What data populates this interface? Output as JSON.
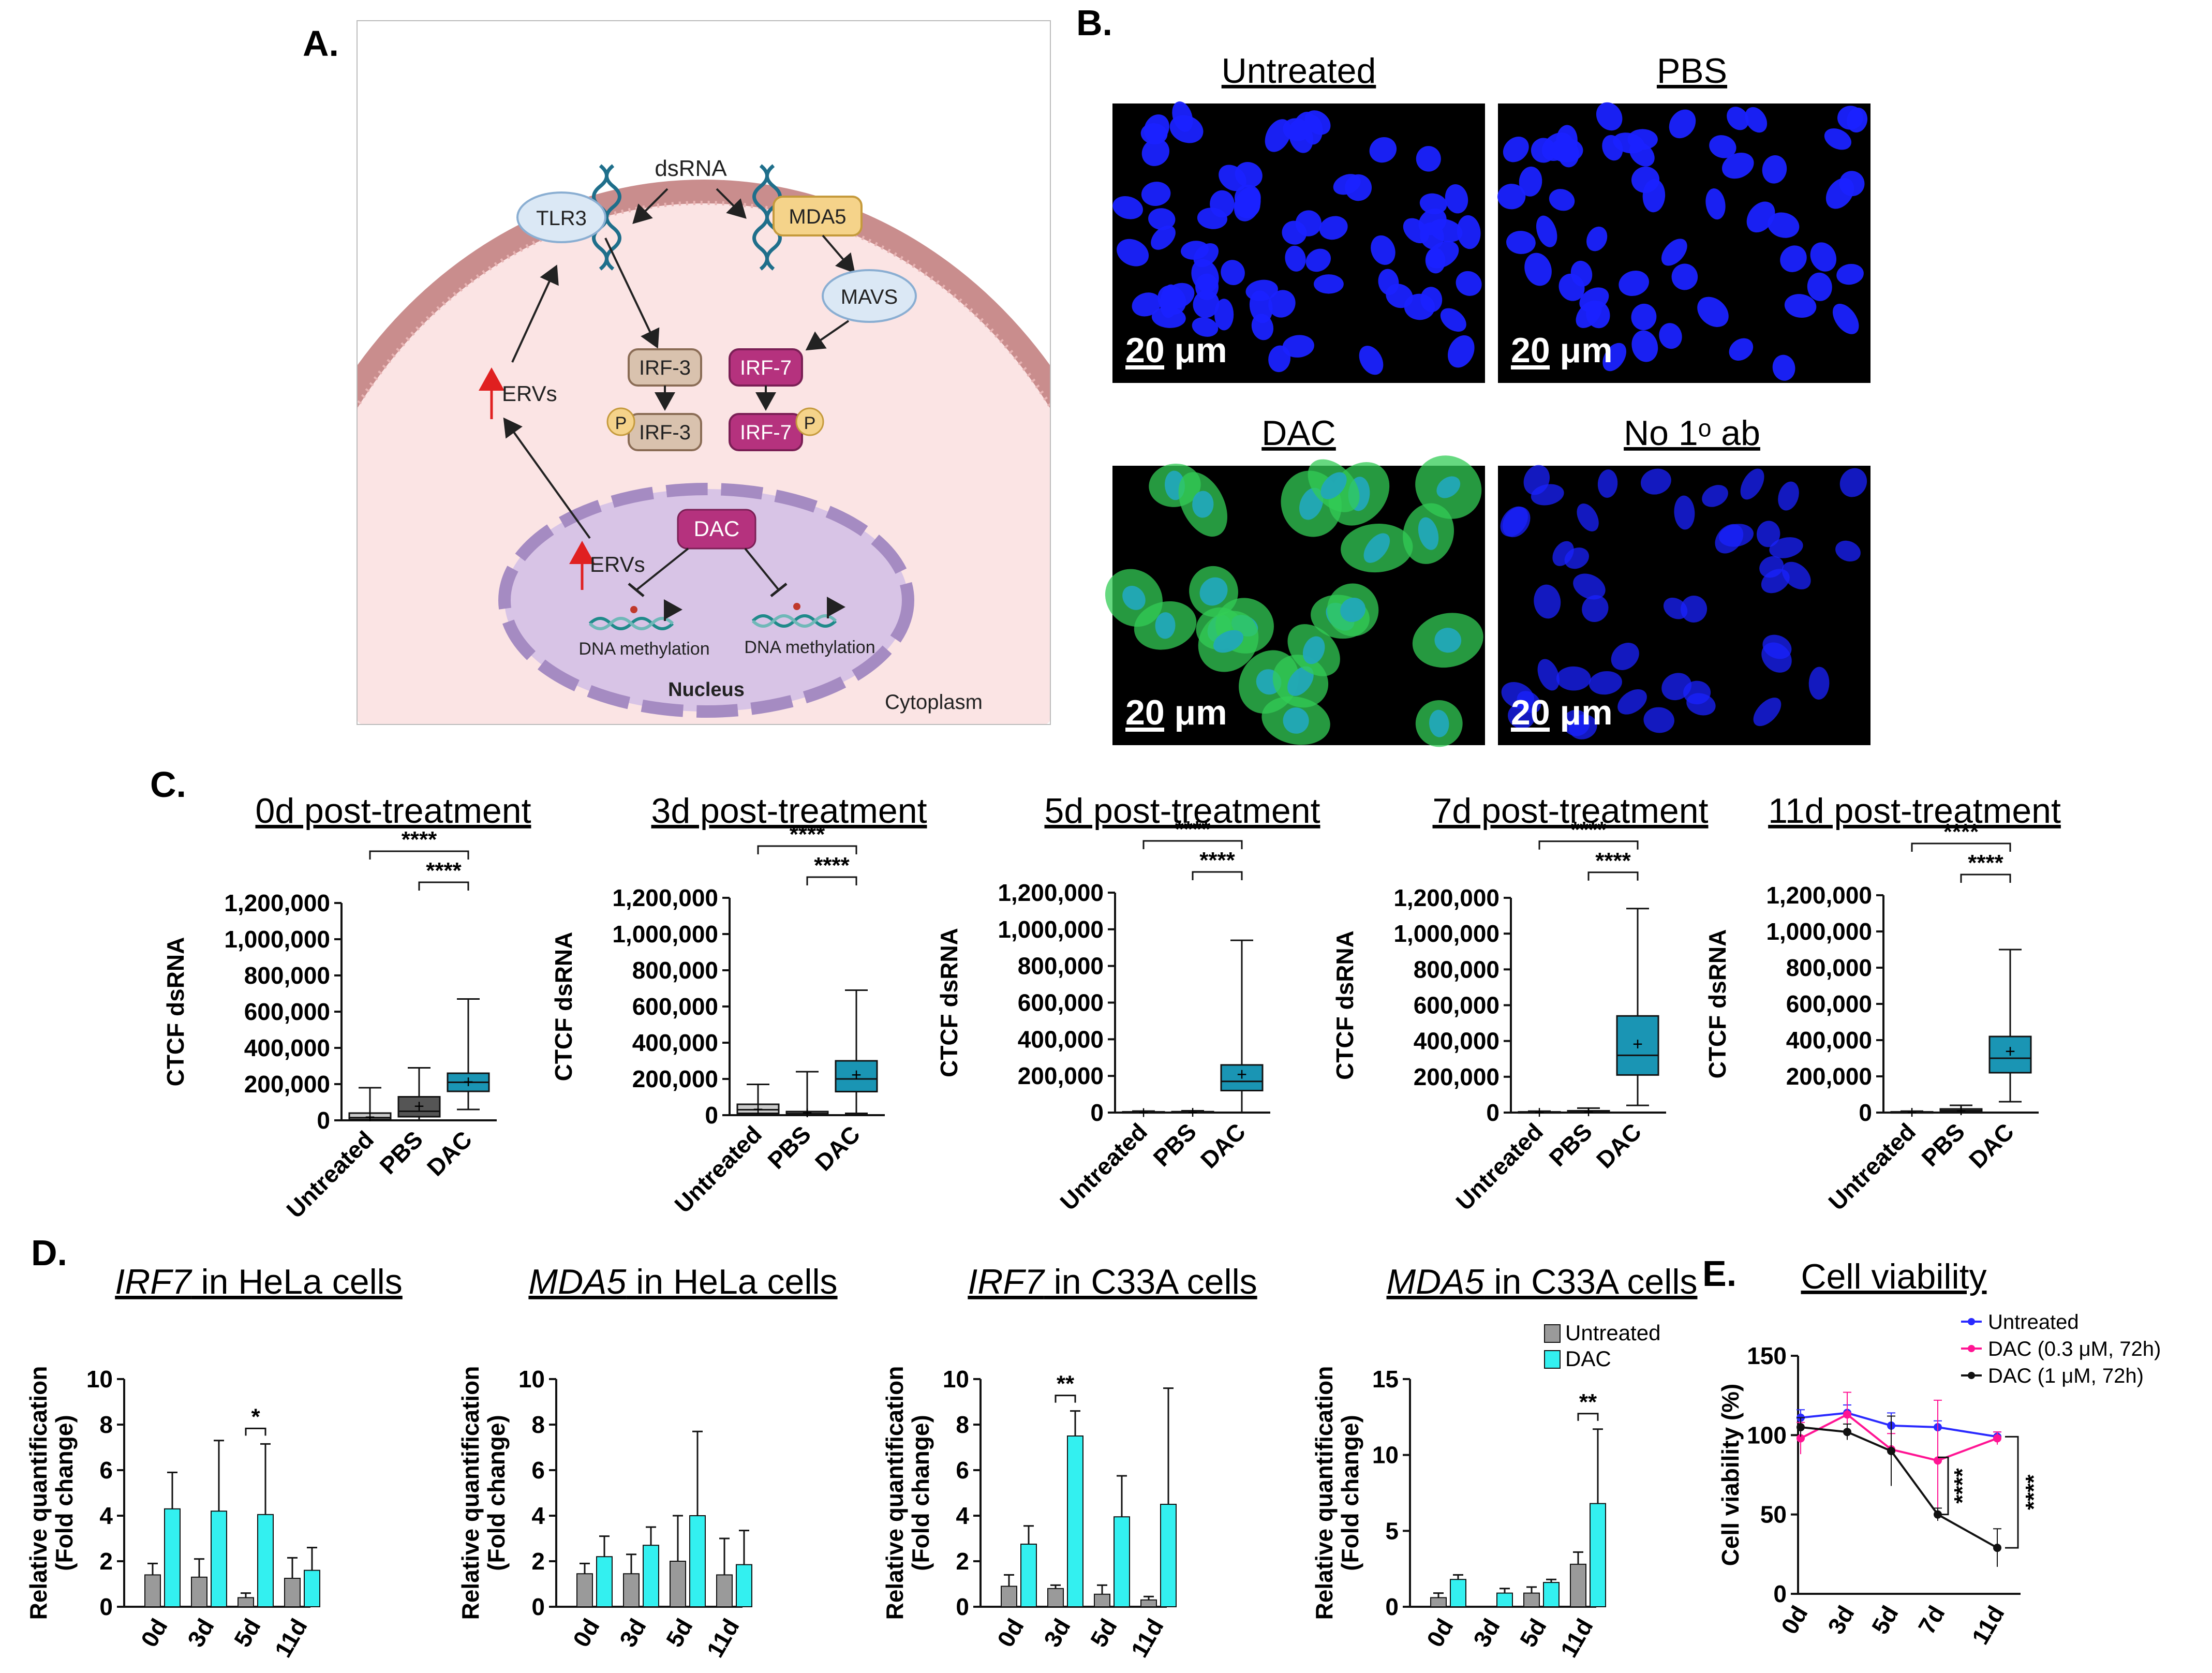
{
  "panel_labels": {
    "A": "A.",
    "B": "B.",
    "C": "C.",
    "D": "D.",
    "E": "E."
  },
  "pathway": {
    "dsRNA": "dsRNA",
    "TLR3": "TLR3",
    "MDA5": "MDA5",
    "MAVS": "MAVS",
    "IRF3": "IRF-3",
    "IRF7": "IRF-7",
    "P": "P",
    "ERVs": "ERVs",
    "DAC": "DAC",
    "methylation": "DNA methylation",
    "nucleus": "Nucleus",
    "cytoplasm": "Cytoplasm",
    "colors": {
      "membrane": "#c98d8d",
      "cell_fill": "#fbe4e4",
      "nucleus_fill": "#d8c4e6",
      "irf7": "#b5327e",
      "irf3": "#d9c2ae",
      "tlr3": "#dbe8f5",
      "mda5": "#f5d38a",
      "red_arrow": "#e02020"
    }
  },
  "images": {
    "untreated": "Untreated",
    "pbs": "PBS",
    "dac": "DAC",
    "no_ab": "No 1ᵒ ab",
    "scale": "20 μm",
    "colors": {
      "dapi": "#1a22ff",
      "dsrna": "#33cc55"
    }
  },
  "boxplots": {
    "y_title": "CTCF dsRNA",
    "y_ticks": [
      "0",
      "200,000",
      "400,000",
      "600,000",
      "800,000",
      "1,000,000",
      "1,200,000"
    ],
    "categories": [
      "Untreated",
      "PBS",
      "DAC"
    ],
    "stars": "****",
    "colors": {
      "Untreated": "#cccccc",
      "PBS": "#555555",
      "DAC": "#1a95b4"
    }
  },
  "bars": {
    "y_title_1": "Relative quantification",
    "y_title_2": "(Fold change)",
    "days": [
      "0d",
      "3d",
      "5d",
      "11d"
    ],
    "legend": [
      "Untreated",
      "DAC"
    ],
    "colors": {
      "Untreated": "#9a9a9a",
      "DAC": "#33f0f0"
    }
  },
  "line": {
    "title": "Cell viability",
    "y_title": "Cell viability (%)",
    "y_ticks": [
      "0",
      "50",
      "100",
      "150"
    ],
    "legend": [
      "Untreated",
      "DAC (0.3 μM, 72h)",
      "DAC (1 μM, 72h)"
    ],
    "stars": "****",
    "colors": [
      "#2a2aff",
      "#ff1493",
      "#111111"
    ]
  },
  "chart_data": [
    {
      "type": "box",
      "title": "0d post-treatment",
      "ylabel": "CTCF dsRNA",
      "ylim": [
        0,
        1200000
      ],
      "categories": [
        "Untreated",
        "PBS",
        "DAC"
      ],
      "stats": [
        {
          "min": 0,
          "q1": 5000,
          "median": 15000,
          "q3": 40000,
          "max": 180000,
          "mean": 20000
        },
        {
          "min": 0,
          "q1": 20000,
          "median": 50000,
          "q3": 130000,
          "max": 290000,
          "mean": 80000
        },
        {
          "min": 60000,
          "q1": 160000,
          "median": 210000,
          "q3": 260000,
          "max": 670000,
          "mean": 215000
        }
      ],
      "significance": [
        {
          "pair": [
            "Untreated",
            "DAC"
          ],
          "label": "****"
        },
        {
          "pair": [
            "PBS",
            "DAC"
          ],
          "label": "****"
        }
      ]
    },
    {
      "type": "box",
      "title": "3d post-treatment",
      "ylabel": "CTCF dsRNA",
      "ylim": [
        0,
        1200000
      ],
      "categories": [
        "Untreated",
        "PBS",
        "DAC"
      ],
      "stats": [
        {
          "min": 0,
          "q1": 10000,
          "median": 30000,
          "q3": 60000,
          "max": 170000,
          "mean": 35000
        },
        {
          "min": 0,
          "q1": 2000,
          "median": 8000,
          "q3": 20000,
          "max": 240000,
          "mean": 15000
        },
        {
          "min": 10000,
          "q1": 130000,
          "median": 200000,
          "q3": 300000,
          "max": 690000,
          "mean": 225000
        }
      ],
      "significance": [
        {
          "pair": [
            "Untreated",
            "DAC"
          ],
          "label": "****"
        },
        {
          "pair": [
            "PBS",
            "DAC"
          ],
          "label": "****"
        }
      ]
    },
    {
      "type": "box",
      "title": "5d post-treatment",
      "ylabel": "CTCF dsRNA",
      "ylim": [
        0,
        1200000
      ],
      "categories": [
        "Untreated",
        "PBS",
        "DAC"
      ],
      "stats": [
        {
          "min": 0,
          "q1": 1000,
          "median": 2000,
          "q3": 4000,
          "max": 8000,
          "mean": 2000
        },
        {
          "min": 0,
          "q1": 1000,
          "median": 2000,
          "q3": 5000,
          "max": 10000,
          "mean": 3000
        },
        {
          "min": 0,
          "q1": 120000,
          "median": 170000,
          "q3": 260000,
          "max": 940000,
          "mean": 210000
        }
      ],
      "significance": [
        {
          "pair": [
            "Untreated",
            "DAC"
          ],
          "label": "****"
        },
        {
          "pair": [
            "PBS",
            "DAC"
          ],
          "label": "****"
        }
      ]
    },
    {
      "type": "box",
      "title": "7d post-treatment",
      "ylabel": "CTCF dsRNA",
      "ylim": [
        0,
        1200000
      ],
      "categories": [
        "Untreated",
        "PBS",
        "DAC"
      ],
      "stats": [
        {
          "min": 0,
          "q1": 1000,
          "median": 2000,
          "q3": 4000,
          "max": 8000,
          "mean": 3000
        },
        {
          "min": 0,
          "q1": 2000,
          "median": 5000,
          "q3": 10000,
          "max": 25000,
          "mean": 6000
        },
        {
          "min": 40000,
          "q1": 210000,
          "median": 320000,
          "q3": 540000,
          "max": 1140000,
          "mean": 385000
        }
      ],
      "significance": [
        {
          "pair": [
            "Untreated",
            "DAC"
          ],
          "label": "****"
        },
        {
          "pair": [
            "PBS",
            "DAC"
          ],
          "label": "****"
        }
      ]
    },
    {
      "type": "box",
      "title": "11d post-treatment",
      "ylabel": "CTCF dsRNA",
      "ylim": [
        0,
        1200000
      ],
      "categories": [
        "Untreated",
        "PBS",
        "DAC"
      ],
      "stats": [
        {
          "min": 0,
          "q1": 1000,
          "median": 2000,
          "q3": 4000,
          "max": 8000,
          "mean": 3000
        },
        {
          "min": 0,
          "q1": 5000,
          "median": 10000,
          "q3": 20000,
          "max": 40000,
          "mean": 12000
        },
        {
          "min": 60000,
          "q1": 220000,
          "median": 300000,
          "q3": 420000,
          "max": 900000,
          "mean": 340000
        }
      ],
      "significance": [
        {
          "pair": [
            "Untreated",
            "DAC"
          ],
          "label": "****"
        },
        {
          "pair": [
            "PBS",
            "DAC"
          ],
          "label": "****"
        }
      ]
    },
    {
      "type": "bar",
      "title": "IRF7 in HeLa cells",
      "gene": "IRF7",
      "cells": "in HeLa cells",
      "ylabel": "Relative quantification (Fold change)",
      "ylim": [
        0,
        10
      ],
      "yticks": [
        0,
        2,
        4,
        6,
        8,
        10
      ],
      "categories": [
        "0d",
        "3d",
        "5d",
        "11d"
      ],
      "series": [
        {
          "name": "Untreated",
          "values": [
            1.4,
            1.3,
            0.4,
            1.25
          ],
          "err": [
            0.5,
            0.8,
            0.2,
            0.9
          ]
        },
        {
          "name": "DAC",
          "values": [
            4.3,
            4.2,
            4.05,
            1.6
          ],
          "err": [
            1.6,
            3.1,
            3.1,
            1.0
          ]
        }
      ],
      "significance": [
        {
          "category": "5d",
          "label": "*"
        }
      ]
    },
    {
      "type": "bar",
      "title": "MDA5 in HeLa cells",
      "gene": "MDA5",
      "cells": "in HeLa cells",
      "ylabel": "Relative quantification (Fold change)",
      "ylim": [
        0,
        10
      ],
      "yticks": [
        0,
        2,
        4,
        6,
        8,
        10
      ],
      "categories": [
        "0d",
        "3d",
        "5d",
        "11d"
      ],
      "series": [
        {
          "name": "Untreated",
          "values": [
            1.45,
            1.45,
            2.0,
            1.4
          ],
          "err": [
            0.45,
            0.85,
            2.0,
            1.6
          ]
        },
        {
          "name": "DAC",
          "values": [
            2.2,
            2.7,
            4.0,
            1.85
          ],
          "err": [
            0.9,
            0.8,
            3.7,
            1.5
          ]
        }
      ],
      "significance": []
    },
    {
      "type": "bar",
      "title": "IRF7 in C33A cells",
      "gene": "IRF7",
      "cells": "in C33A cells",
      "ylabel": "Relative quantification (Fold change)",
      "ylim": [
        0,
        10
      ],
      "yticks": [
        0,
        2,
        4,
        6,
        8,
        10
      ],
      "categories": [
        "0d",
        "3d",
        "5d",
        "11d"
      ],
      "series": [
        {
          "name": "Untreated",
          "values": [
            0.9,
            0.8,
            0.55,
            0.3
          ],
          "err": [
            0.5,
            0.15,
            0.4,
            0.15
          ]
        },
        {
          "name": "DAC",
          "values": [
            2.75,
            7.5,
            3.95,
            4.5
          ],
          "err": [
            0.8,
            1.1,
            1.8,
            5.1
          ]
        }
      ],
      "significance": [
        {
          "category": "3d",
          "label": "**"
        }
      ]
    },
    {
      "type": "bar",
      "title": "MDA5 in C33A cells",
      "gene": "MDA5",
      "cells": "in C33A cells",
      "ylabel": "Relative quantification (Fold change)",
      "ylim": [
        0,
        15
      ],
      "yticks": [
        0,
        5,
        10,
        15
      ],
      "categories": [
        "0d",
        "3d",
        "5d",
        "11d"
      ],
      "series": [
        {
          "name": "Untreated",
          "values": [
            0.6,
            0,
            0.9,
            2.8
          ],
          "err": [
            0.3,
            0,
            0.4,
            0.8
          ]
        },
        {
          "name": "DAC",
          "values": [
            1.8,
            0.9,
            1.6,
            6.8
          ],
          "err": [
            0.3,
            0.3,
            0.2,
            4.9
          ]
        }
      ],
      "significance": [
        {
          "category": "11d",
          "label": "**"
        }
      ],
      "legend": "top-right"
    },
    {
      "type": "line",
      "title": "Cell viability",
      "ylabel": "Cell viability (%)",
      "ylim": [
        0,
        150
      ],
      "yticks": [
        0,
        50,
        100,
        150
      ],
      "x": [
        "0d",
        "3d",
        "5d",
        "7d",
        "11d"
      ],
      "series": [
        {
          "name": "Untreated",
          "values": [
            111,
            114,
            106,
            105,
            99
          ],
          "err": [
            5,
            5,
            8,
            4,
            3
          ]
        },
        {
          "name": "DAC (0.3 μM, 72h)",
          "values": [
            98,
            113,
            91,
            84,
            98
          ],
          "err": [
            10,
            14,
            10,
            38,
            4
          ]
        },
        {
          "name": "DAC (1 μM, 72h)",
          "values": [
            105,
            102,
            90,
            50,
            29
          ],
          "err": [
            6,
            5,
            22,
            4,
            12
          ]
        }
      ],
      "significance": [
        {
          "label": "****"
        },
        {
          "label": "****"
        }
      ],
      "legend": "top-right"
    }
  ]
}
